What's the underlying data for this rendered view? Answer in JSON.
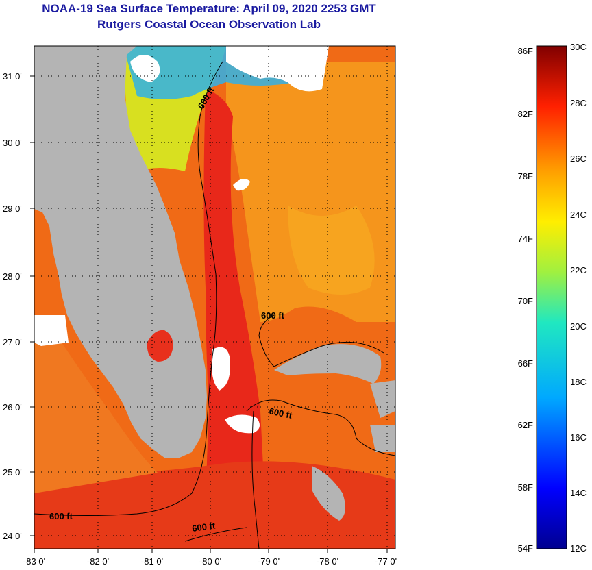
{
  "header": {
    "title": "NOAA-19 Sea Surface Temperature:  April 09, 2020 2253 GMT",
    "subtitle": "Rutgers Coastal Ocean Observation Lab"
  },
  "map": {
    "lat_labels": [
      "31 0'",
      "30 0'",
      "29 0'",
      "28 0'",
      "27 0'",
      "26 0'",
      "25 0'",
      "24 0'"
    ],
    "lon_labels": [
      "-83 0'",
      "-82 0'",
      "-81 0'",
      "-80 0'",
      "-79 0'",
      "-78 0'",
      "-77 0'"
    ],
    "contour_labels": [
      "600 ft",
      "600 ft",
      "600 ft",
      "600 ft",
      "600 ft"
    ],
    "colors": {
      "land": "#b4b4b4",
      "cloud": "#ffffff",
      "warm_core": "#e8281a",
      "shelf": "#f06a14",
      "offshore": "#f59a1c"
    }
  },
  "colorbar": {
    "fahrenheit_labels": [
      "86F",
      "82F",
      "78F",
      "74F",
      "70F",
      "66F",
      "62F",
      "58F",
      "54F"
    ],
    "celsius_labels": [
      "30C",
      "28C",
      "26C",
      "24C",
      "22C",
      "20C",
      "18C",
      "16C",
      "14C",
      "12C"
    ],
    "range_c": [
      12,
      30
    ],
    "range_f": [
      54,
      86
    ]
  }
}
